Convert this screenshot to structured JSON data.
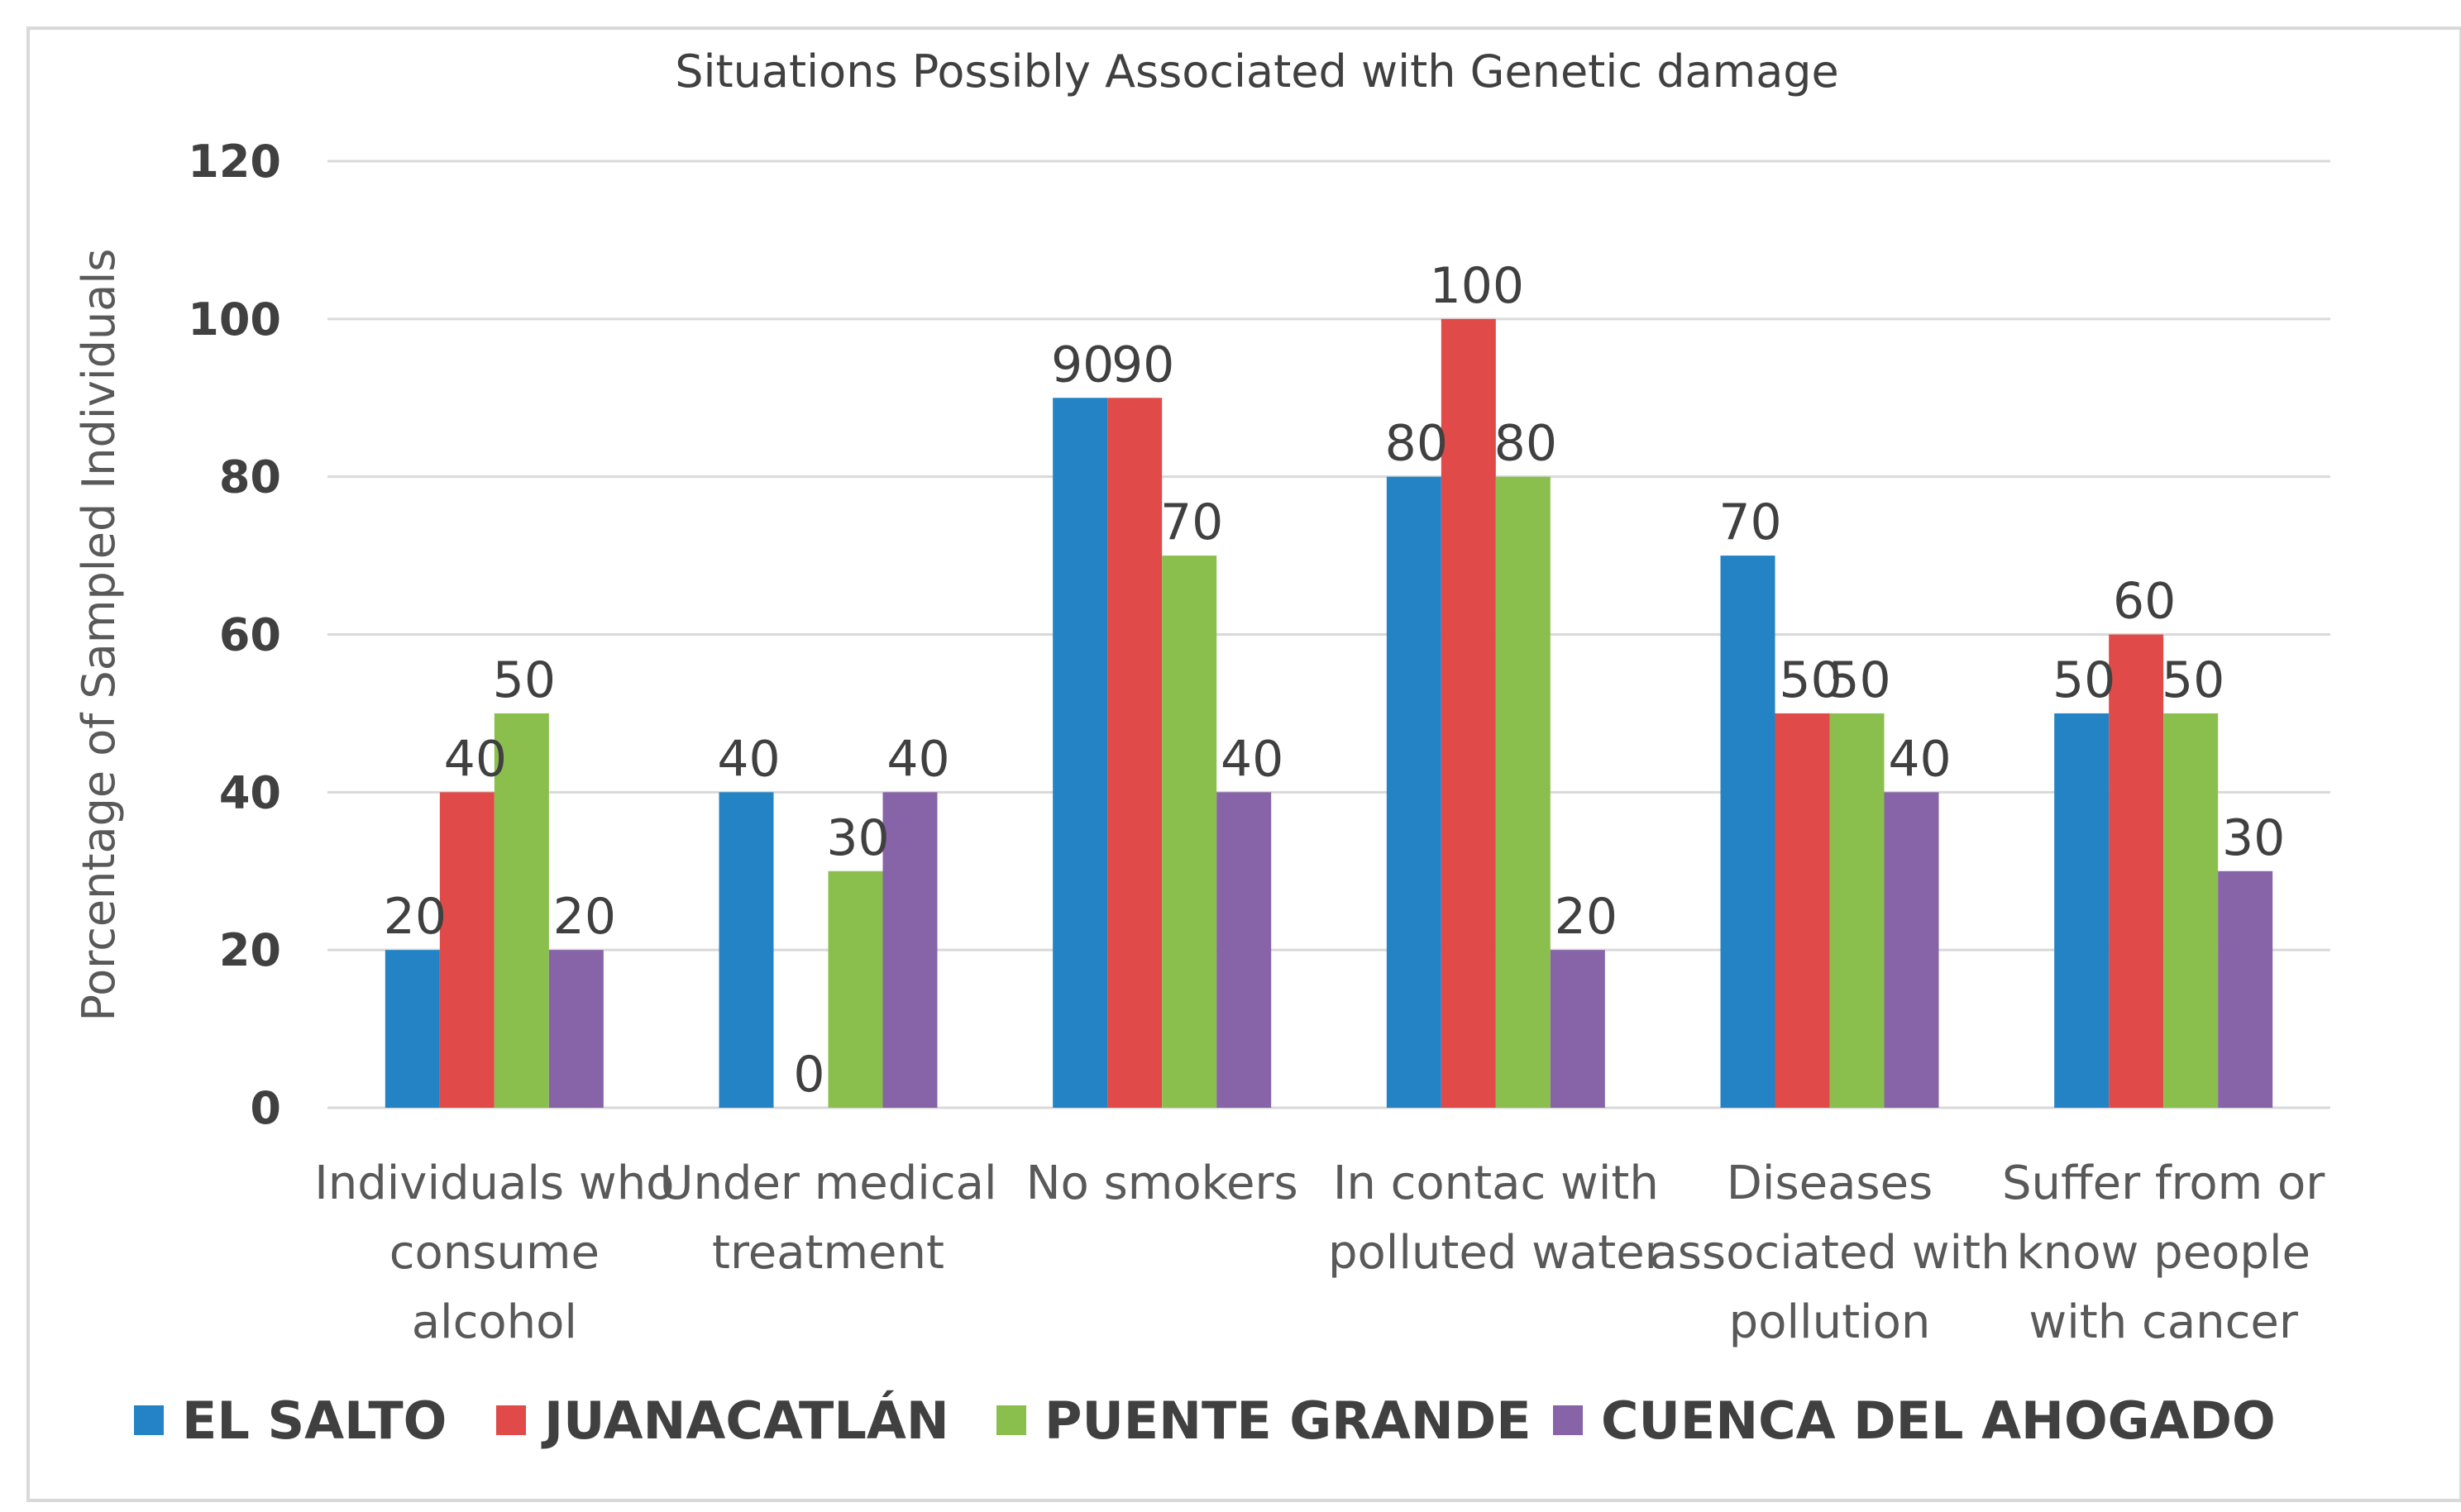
{
  "chart_data": {
    "type": "bar",
    "title": "Situations Possibly Associated with  Genetic damage",
    "xlabel": "",
    "ylabel": "Porcentage of Sampled Individuals",
    "ylim": [
      0,
      120
    ],
    "yticks": [
      "0",
      "20",
      "40",
      "60",
      "80",
      "100",
      "120"
    ],
    "grid": true,
    "legend_position": "bottom",
    "categories": [
      [
        "Individuals who",
        "consume",
        "alcohol"
      ],
      [
        "Under medical",
        "treatment"
      ],
      [
        "No smokers"
      ],
      [
        "In contac with",
        "polluted water"
      ],
      [
        "Diseases",
        "associated with",
        "pollution"
      ],
      [
        "Suffer from or",
        "know people",
        "with cancer"
      ]
    ],
    "series": [
      {
        "name": "EL SALTO",
        "color": "#2383C4",
        "values": [
          20,
          40,
          90,
          80,
          70,
          50
        ]
      },
      {
        "name": "JUANACATLÁN",
        "color": "#E04B4A",
        "values": [
          40,
          0,
          90,
          100,
          50,
          60
        ]
      },
      {
        "name": "PUENTE GRANDE",
        "color": "#8BBF4D",
        "values": [
          50,
          30,
          70,
          80,
          50,
          50
        ]
      },
      {
        "name": "CUENCA DEL AHOGADO",
        "color": "#8763A8",
        "values": [
          20,
          40,
          40,
          20,
          40,
          30
        ]
      }
    ]
  }
}
